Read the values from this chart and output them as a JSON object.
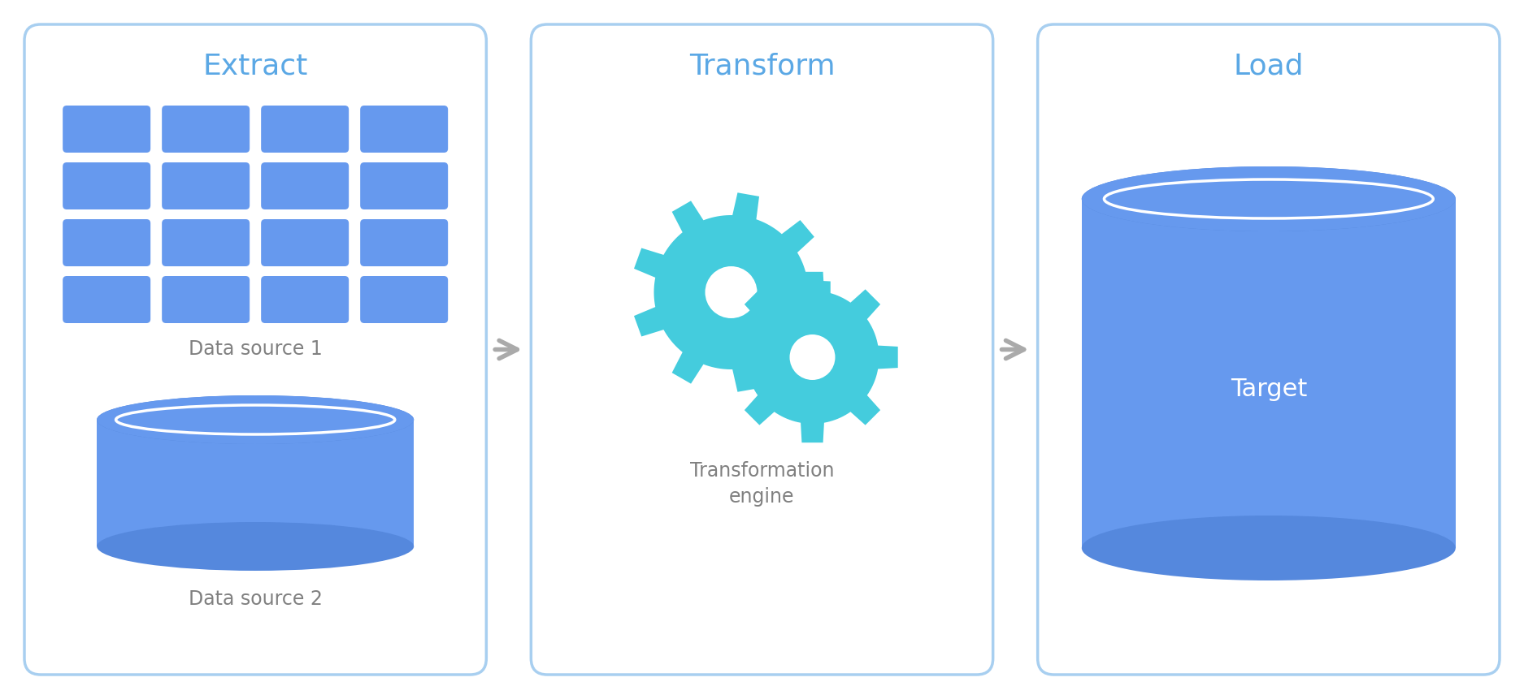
{
  "bg_color": "#ffffff",
  "box_border_color": "#a8cff0",
  "box_fill_color": "#ffffff",
  "section_title_color": "#5ba8e5",
  "label_color": "#808080",
  "blue_fill": "#6699ee",
  "blue_mid": "#5588dd",
  "blue_dark": "#4477bb",
  "teal_fill": "#44ccdd",
  "arrow_color": "#aaaaaa",
  "white": "#ffffff",
  "target_text_color": "#ffffff",
  "sections": [
    "Extract",
    "Transform",
    "Load"
  ],
  "title_fontsize": 26,
  "label_fontsize": 17
}
